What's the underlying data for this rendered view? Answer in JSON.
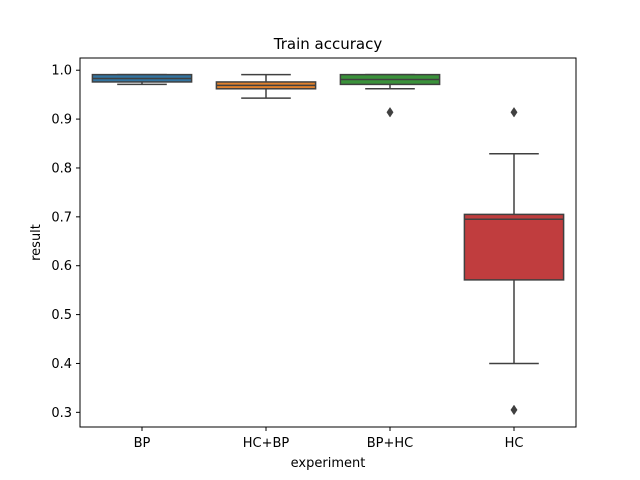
{
  "chart_data": {
    "type": "boxplot",
    "title": "Train accuracy",
    "xlabel": "experiment",
    "ylabel": "result",
    "ylim": [
      0.27,
      1.025
    ],
    "yticks": [
      0.3,
      0.4,
      0.5,
      0.6,
      0.7,
      0.8,
      0.9,
      1.0
    ],
    "ytick_labels": [
      "0.3",
      "0.4",
      "0.5",
      "0.6",
      "0.7",
      "0.8",
      "0.9",
      "1.0"
    ],
    "categories": [
      "BP",
      "HC+BP",
      "BP+HC",
      "HC"
    ],
    "boxes": [
      {
        "name": "BP",
        "color": "#3274a1",
        "whisker_low": 0.971,
        "q1": 0.976,
        "median": 0.983,
        "q3": 0.991,
        "whisker_high": 0.991,
        "outliers": []
      },
      {
        "name": "HC+BP",
        "color": "#e1812c",
        "whisker_low": 0.943,
        "q1": 0.962,
        "median": 0.969,
        "q3": 0.976,
        "whisker_high": 0.991,
        "outliers": []
      },
      {
        "name": "BP+HC",
        "color": "#3a923a",
        "whisker_low": 0.962,
        "q1": 0.971,
        "median": 0.981,
        "q3": 0.991,
        "whisker_high": 0.991,
        "outliers": [
          0.914
        ]
      },
      {
        "name": "HC",
        "color": "#c03d3e",
        "whisker_low": 0.4,
        "q1": 0.571,
        "median": 0.695,
        "q3": 0.705,
        "whisker_high": 0.829,
        "outliers": [
          0.914,
          0.305
        ]
      }
    ]
  }
}
